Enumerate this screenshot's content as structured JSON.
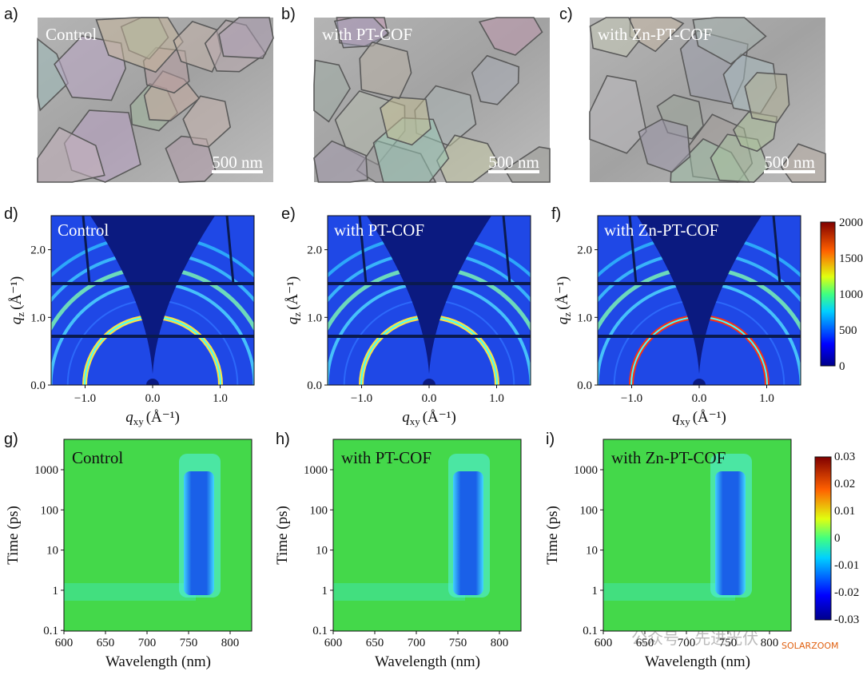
{
  "sem": {
    "panels": [
      {
        "label": "a)",
        "caption": "Control",
        "scale_bar": "500 nm"
      },
      {
        "label": "b)",
        "caption": "with PT-COF",
        "scale_bar": "500 nm"
      },
      {
        "label": "c)",
        "caption": "with Zn-PT-COF",
        "scale_bar": "500 nm"
      }
    ]
  },
  "giwaxs": {
    "panels": [
      {
        "label": "d)",
        "caption": "Control"
      },
      {
        "label": "e)",
        "caption": "with PT-COF"
      },
      {
        "label": "f)",
        "caption": "with Zn-PT-COF"
      }
    ],
    "y_axis": {
      "symbol": "q",
      "subscript": "z",
      "unit": "(Å⁻¹)"
    },
    "x_axis": {
      "symbol": "q",
      "subscript": "xy",
      "unit": "(Å⁻¹)"
    },
    "yticks": [
      "0.0",
      "1.0",
      "2.0"
    ],
    "xticks": [
      "−1.0",
      "0.0",
      "1.0"
    ],
    "colorbar_ticks": [
      "2000",
      "1500",
      "1000",
      "500",
      "0"
    ]
  },
  "transient_absorption": {
    "panels": [
      {
        "label": "g)",
        "caption": "Control"
      },
      {
        "label": "h)",
        "caption": "with PT-COF"
      },
      {
        "label": "i)",
        "caption": "with Zn-PT-COF"
      }
    ],
    "y_axis": "Time (ps)",
    "x_axis": "Wavelength (nm)",
    "yticks": [
      "1000",
      "100",
      "10",
      "1",
      "0.1"
    ],
    "xticks": [
      "600",
      "650",
      "700",
      "750",
      "800"
    ],
    "colorbar_ticks": [
      "0.03",
      "0.02",
      "0.01",
      "0",
      "-0.01",
      "-0.02",
      "-0.03"
    ]
  },
  "watermark": {
    "account": "公众号 · 先进光伏",
    "brand": "SOLARZOOM"
  }
}
